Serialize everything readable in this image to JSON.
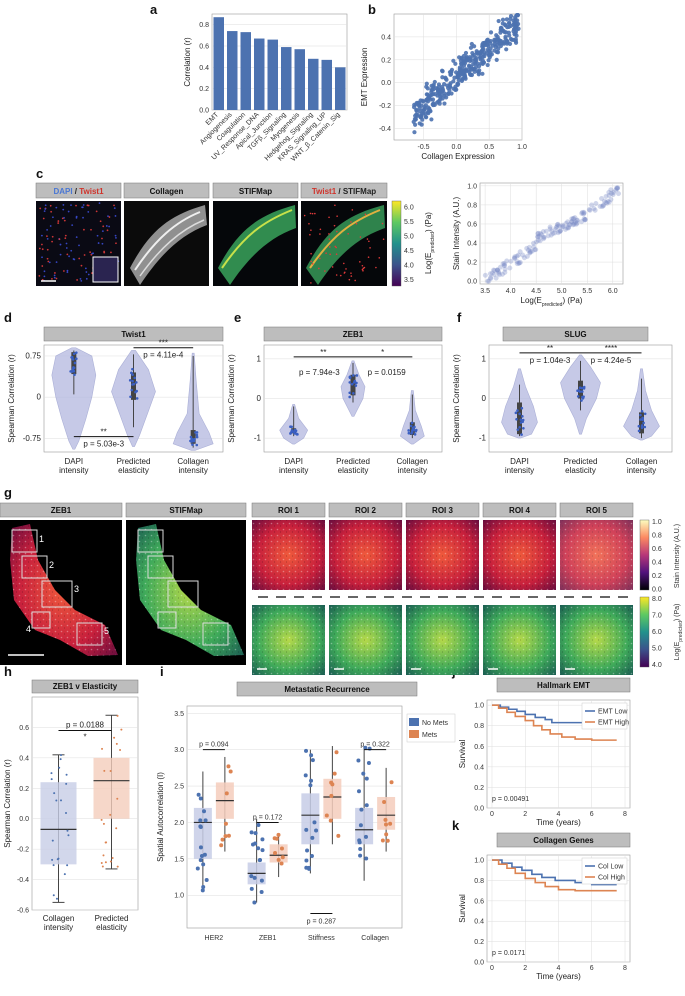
{
  "panels": {
    "a": "a",
    "b": "b",
    "c": "c",
    "d": "d",
    "e": "e",
    "f": "f",
    "g": "g",
    "h": "h",
    "i": "i",
    "j": "j",
    "k": "k"
  },
  "chart_data": [
    {
      "id": "a",
      "type": "bar",
      "categories": [
        "EMT",
        "Angiogenesis",
        "Coagulation",
        "UV_Response_DNA",
        "Apical_Junction",
        "TGFβ_Signaling",
        "Myogenesis",
        "Hedgehog_Signaling",
        "KRAS_Signaling_UP",
        "WNT_β_Catenin_Sig"
      ],
      "values": [
        0.87,
        0.74,
        0.73,
        0.67,
        0.66,
        0.59,
        0.57,
        0.48,
        0.47,
        0.4
      ],
      "ylabel": "Correlation (r)",
      "ylim": [
        0,
        0.9
      ],
      "yticks": [
        "0.0",
        "0.2",
        "0.4",
        "0.6",
        "0.8"
      ],
      "color": "#4c72b0"
    },
    {
      "id": "b",
      "type": "scatter",
      "xlabel": "Collagen Expression",
      "ylabel": "EMT Expression",
      "xlim": [
        -0.95,
        1.0
      ],
      "ylim": [
        -0.5,
        0.6
      ],
      "xticks": [
        "-0.5",
        "0.0",
        "0.5",
        "1.0"
      ],
      "yticks": [
        "-0.4",
        "-0.2",
        "0.0",
        "0.2",
        "0.4"
      ],
      "trend": {
        "slope": 0.5,
        "intercept": 0.06,
        "n": 380
      },
      "color": "#4c72b0"
    },
    {
      "id": "c",
      "type": "scatter",
      "xlabel": "Log(E",
      "xlabel_sub": "predicted",
      "xlabel_tail": ") (Pa)",
      "ylabel": "Stain Intensity (A.U.)",
      "xlim": [
        3.4,
        6.2
      ],
      "ylim": [
        -0.03,
        1.03
      ],
      "xticks": [
        "3.5",
        "4.0",
        "4.5",
        "5.0",
        "5.5",
        "6.0"
      ],
      "yticks": [
        "0.0",
        "0.2",
        "0.4",
        "0.6",
        "0.8",
        "1.0"
      ],
      "color": "#7b8cc7"
    },
    {
      "id": "d",
      "type": "violin",
      "title": "Twist1",
      "ylabel": "Spearman Correlation (r)",
      "categories": [
        "DAPI\nintensity",
        "Predicted\nelasticity",
        "Collagen\nintensity"
      ],
      "ylim": [
        -1.0,
        0.95
      ],
      "yticks": [
        "0.75",
        "0",
        "-0.75"
      ],
      "annotations": [
        "**",
        "p = 5.03e-3",
        "***",
        "p = 4.11e-4"
      ]
    },
    {
      "id": "e",
      "type": "violin",
      "title": "ZEB1",
      "ylabel": "Spearman Correlation (r)",
      "categories": [
        "DAPI\nintensity",
        "Predicted\nelasticity",
        "Collagen\nintensity"
      ],
      "ylim": [
        -1.35,
        1.35
      ],
      "yticks": [
        "1",
        "0",
        "-1"
      ],
      "annotations": [
        "**",
        "p = 7.94e-3",
        "*",
        "p = 0.0159"
      ]
    },
    {
      "id": "f",
      "type": "violin",
      "title": "SLUG",
      "ylabel": "Spearman Correlation (r)",
      "categories": [
        "DAPI\nintensity",
        "Predicted\nelasticity",
        "Collagen\nintensity"
      ],
      "ylim": [
        -1.35,
        1.35
      ],
      "yticks": [
        "1",
        "0",
        "-1"
      ],
      "annotations": [
        "**",
        "p = 1.04e-3",
        "****",
        "p = 4.24e-5"
      ]
    },
    {
      "id": "h",
      "type": "box",
      "title": "ZEB1 v Elasticity",
      "ylabel": "Spearman Correlation (r)",
      "categories": [
        "Collagen\nintensity",
        "Predicted\nelasticity"
      ],
      "ylim": [
        -0.6,
        0.8
      ],
      "yticks": [
        "0.6",
        "0.4",
        "0.2",
        "0.0",
        "-0.2",
        "-0.4",
        "-0.6"
      ],
      "annotations": [
        "p = 0.0188",
        "*"
      ]
    },
    {
      "id": "i",
      "type": "box",
      "title": "Metastatic Recurrence",
      "ylabel": "Spatial Autocorrelation (I)",
      "categories": [
        "HER2",
        "ZEB1",
        "Stiffness",
        "Collagen"
      ],
      "ylim": [
        0.55,
        3.6
      ],
      "yticks": [
        "3.5",
        "3.0",
        "2.5",
        "2.0",
        "1.5",
        "1.0"
      ],
      "series": [
        {
          "name": "No Mets",
          "color": "#4c72b0"
        },
        {
          "name": "Mets",
          "color": "#dd8452"
        }
      ],
      "annotations": [
        "p = 0.094",
        "p = 0.172",
        "p = 0.287",
        "p = 0.322"
      ]
    },
    {
      "id": "j",
      "type": "line",
      "title": "Hallmark EMT",
      "ylabel": "Survival",
      "xlabel": "Time (years)",
      "xlim": [
        -0.3,
        8.3
      ],
      "ylim": [
        0,
        1.05
      ],
      "xticks": [
        "0",
        "2",
        "4",
        "6",
        "8"
      ],
      "yticks": [
        "0.0",
        "0.2",
        "0.4",
        "0.6",
        "0.8",
        "1.0"
      ],
      "series": [
        {
          "name": "EMT Low",
          "color": "#4c72b0",
          "steps": [
            [
              0,
              1.0
            ],
            [
              0.5,
              0.98
            ],
            [
              1,
              0.96
            ],
            [
              1.5,
              0.94
            ],
            [
              2,
              0.91
            ],
            [
              2.6,
              0.88
            ],
            [
              3.2,
              0.86
            ],
            [
              3.6,
              0.83
            ],
            [
              7.5,
              0.83
            ]
          ]
        },
        {
          "name": "EMT High",
          "color": "#dd8452",
          "steps": [
            [
              0,
              1.0
            ],
            [
              0.4,
              0.97
            ],
            [
              0.9,
              0.93
            ],
            [
              1.4,
              0.89
            ],
            [
              2,
              0.85
            ],
            [
              2.5,
              0.8
            ],
            [
              3,
              0.76
            ],
            [
              3.5,
              0.72
            ],
            [
              4.2,
              0.69
            ],
            [
              5,
              0.67
            ],
            [
              6,
              0.66
            ],
            [
              7.5,
              0.66
            ]
          ]
        }
      ],
      "annotations": [
        "p = 0.00491"
      ]
    },
    {
      "id": "k",
      "type": "line",
      "title": "Collagen Genes",
      "ylabel": "Survival",
      "xlabel": "Time (years)",
      "xlim": [
        -0.3,
        8.3
      ],
      "ylim": [
        0,
        1.05
      ],
      "xticks": [
        "0",
        "2",
        "4",
        "6",
        "8"
      ],
      "yticks": [
        "0.0",
        "0.2",
        "0.4",
        "0.6",
        "0.8",
        "1.0"
      ],
      "series": [
        {
          "name": "Col Low",
          "color": "#4c72b0",
          "steps": [
            [
              0,
              1.0
            ],
            [
              0.6,
              0.97
            ],
            [
              1.2,
              0.93
            ],
            [
              1.8,
              0.9
            ],
            [
              2.4,
              0.86
            ],
            [
              3,
              0.83
            ],
            [
              3.8,
              0.8
            ],
            [
              5,
              0.78
            ],
            [
              6,
              0.76
            ],
            [
              7.5,
              0.76
            ]
          ]
        },
        {
          "name": "Col High",
          "color": "#dd8452",
          "steps": [
            [
              0,
              1.0
            ],
            [
              0.4,
              0.96
            ],
            [
              0.9,
              0.92
            ],
            [
              1.4,
              0.87
            ],
            [
              2,
              0.82
            ],
            [
              2.6,
              0.78
            ],
            [
              3.2,
              0.74
            ],
            [
              4,
              0.71
            ],
            [
              5,
              0.7
            ],
            [
              7.5,
              0.7
            ]
          ]
        }
      ],
      "annotations": [
        "p = 0.0171"
      ]
    }
  ],
  "images": {
    "c_headers": [
      {
        "parts": [
          {
            "t": "DAPI",
            "c": "#4a77d4"
          },
          {
            "t": " / ",
            "c": "#222"
          },
          {
            "t": "Twist1",
            "c": "#d0342c"
          }
        ]
      },
      {
        "parts": [
          {
            "t": "Collagen",
            "c": "#111"
          }
        ]
      },
      {
        "parts": [
          {
            "t": "STIFMap",
            "c": "#111"
          }
        ]
      },
      {
        "parts": [
          {
            "t": "Twist1",
            "c": "#d0342c"
          },
          {
            "t": " / STIFMap",
            "c": "#222"
          }
        ]
      }
    ],
    "c_colorbar": {
      "ticks": [
        "6.0",
        "5.5",
        "5.0",
        "4.5",
        "4.0",
        "3.5"
      ],
      "label": "Log(E",
      "label_sub": "predicted",
      "label_tail": ") (Pa)"
    },
    "g_headers": [
      "ZEB1",
      "STIFMap",
      "ROI 1",
      "ROI 2",
      "ROI 3",
      "ROI 4",
      "ROI 5"
    ],
    "g_roi_numbers": [
      "1",
      "2",
      "3",
      "4",
      "5"
    ],
    "g_colorbar_top": {
      "ticks": [
        "1.0",
        "0.8",
        "0.6",
        "0.4",
        "0.2",
        "0.0"
      ],
      "label": "Stain Intensity (A.U.)"
    },
    "g_colorbar_bottom": {
      "ticks": [
        "8.0",
        "7.0",
        "6.0",
        "5.0",
        "4.0"
      ],
      "label": "Log(E",
      "label_sub": "predicted",
      "label_tail": ") (Pa)"
    }
  }
}
